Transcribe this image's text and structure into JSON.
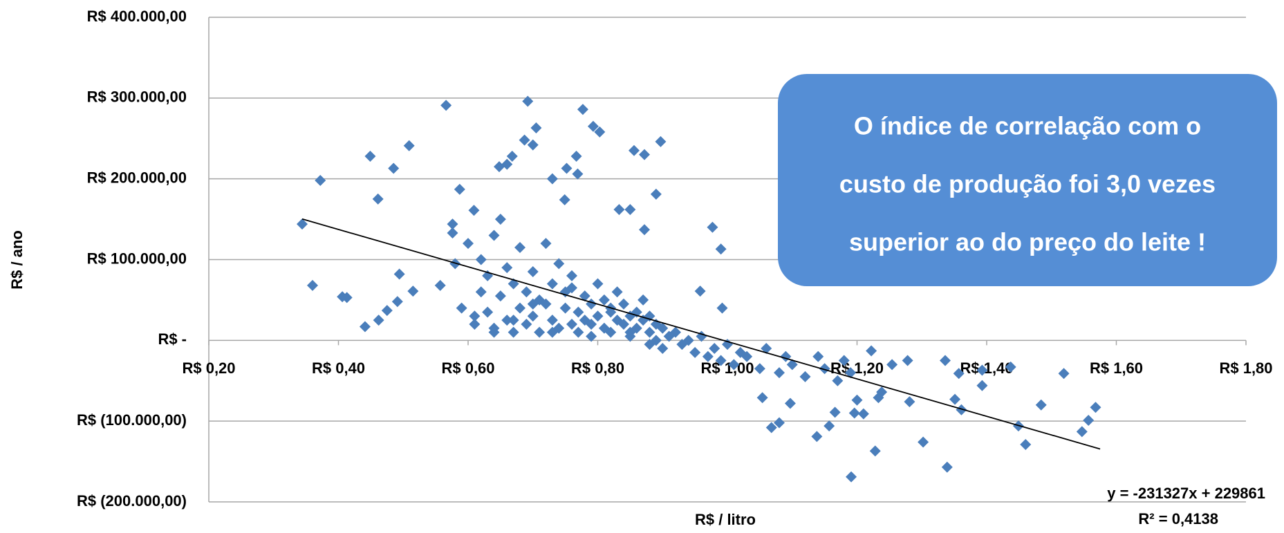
{
  "chart_data": {
    "type": "scatter",
    "x_label": "R$ / litro",
    "y_label": "R$ / ano",
    "xlim": [
      0.2,
      1.8
    ],
    "ylim": [
      -200000,
      400000
    ],
    "xticks": [
      {
        "value": 0.2,
        "label": "R$ 0,20"
      },
      {
        "value": 0.4,
        "label": "R$ 0,40"
      },
      {
        "value": 0.6,
        "label": "R$ 0,60"
      },
      {
        "value": 0.8,
        "label": "R$ 0,80"
      },
      {
        "value": 1.0,
        "label": "R$ 1,00"
      },
      {
        "value": 1.2,
        "label": "R$ 1,20"
      },
      {
        "value": 1.4,
        "label": "R$ 1,40"
      },
      {
        "value": 1.6,
        "label": "R$ 1,60"
      },
      {
        "value": 1.8,
        "label": "R$ 1,80"
      }
    ],
    "yticks": [
      {
        "value": 400000,
        "label": "R$ 400.000,00"
      },
      {
        "value": 300000,
        "label": "R$ 300.000,00"
      },
      {
        "value": 200000,
        "label": "R$ 200.000,00"
      },
      {
        "value": 100000,
        "label": "R$ 100.000,00"
      },
      {
        "value": 0,
        "label": "R$ -"
      },
      {
        "value": -100000,
        "label": "R$ (100.000,00)"
      },
      {
        "value": -200000,
        "label": "R$ (200.000,00)"
      }
    ],
    "grid": true,
    "series": [
      {
        "color": "#4a7ebb",
        "x": [
          0.344,
          0.372,
          0.36,
          0.406,
          0.413,
          0.441,
          0.449,
          0.461,
          0.462,
          0.475,
          0.485,
          0.491,
          0.494,
          0.509,
          0.515,
          0.566,
          0.557,
          0.576,
          0.587,
          0.576,
          0.609,
          0.648,
          0.66,
          0.668,
          0.692,
          0.705,
          0.687,
          0.7,
          0.73,
          0.767,
          0.777,
          0.793,
          0.803,
          0.752,
          0.769,
          0.749,
          0.856,
          0.872,
          0.897,
          0.89,
          0.833,
          0.85,
          0.872,
          0.977,
          0.99,
          0.958,
          0.992,
          1.054,
          1.068,
          1.08,
          1.097,
          1.138,
          1.157,
          1.166,
          1.191,
          1.196,
          1.21,
          1.2,
          1.228,
          1.233,
          1.238,
          1.222,
          1.281,
          1.302,
          1.339,
          1.351,
          1.361,
          1.393,
          1.437,
          1.449,
          1.46,
          1.484,
          1.519,
          1.547,
          1.557,
          1.568,
          1.278,
          1.254,
          1.336,
          1.357,
          1.393,
          0.58,
          0.59,
          0.6,
          0.61,
          0.62,
          0.62,
          0.63,
          0.63,
          0.64,
          0.64,
          0.65,
          0.65,
          0.66,
          0.66,
          0.67,
          0.67,
          0.68,
          0.68,
          0.69,
          0.69,
          0.7,
          0.7,
          0.71,
          0.71,
          0.72,
          0.72,
          0.73,
          0.73,
          0.74,
          0.74,
          0.75,
          0.75,
          0.76,
          0.76,
          0.77,
          0.77,
          0.78,
          0.78,
          0.79,
          0.79,
          0.8,
          0.8,
          0.81,
          0.81,
          0.82,
          0.82,
          0.83,
          0.83,
          0.84,
          0.84,
          0.85,
          0.85,
          0.86,
          0.86,
          0.87,
          0.87,
          0.88,
          0.88,
          0.89,
          0.89,
          0.9,
          0.9,
          0.91,
          0.92,
          0.93,
          0.94,
          0.95,
          0.96,
          0.97,
          0.98,
          0.99,
          1.0,
          1.01,
          1.02,
          1.03,
          1.05,
          1.06,
          1.08,
          1.09,
          1.1,
          1.12,
          1.14,
          1.15,
          1.17,
          1.18,
          1.19,
          0.61,
          0.64,
          0.67,
          0.7,
          0.73,
          0.76,
          0.79,
          0.82,
          0.85,
          0.88
        ],
        "values": [
          144000,
          198000,
          68000,
          54000,
          53000,
          17000,
          228000,
          175000,
          25000,
          37000,
          213000,
          48000,
          82000,
          241000,
          61000,
          291000,
          68000,
          144000,
          187000,
          133000,
          161000,
          215000,
          218000,
          228000,
          296000,
          263000,
          248000,
          242000,
          200000,
          228000,
          286000,
          265000,
          258000,
          213000,
          206000,
          174000,
          235000,
          230000,
          246000,
          181000,
          162000,
          162000,
          137000,
          140000,
          113000,
          61000,
          40000,
          -71000,
          -108000,
          -102000,
          -78000,
          -119000,
          -106000,
          -89000,
          -169000,
          -90000,
          -91000,
          -74000,
          -137000,
          -71000,
          -64000,
          -13000,
          -76000,
          -126000,
          -157000,
          -73000,
          -86000,
          -56000,
          -33000,
          -106000,
          -129000,
          -80000,
          -41000,
          -113000,
          -99000,
          -83000,
          -25000,
          -30000,
          -25000,
          -41000,
          -37000,
          95000,
          40000,
          120000,
          20000,
          60000,
          100000,
          35000,
          80000,
          10000,
          130000,
          55000,
          150000,
          25000,
          90000,
          70000,
          10000,
          115000,
          40000,
          60000,
          20000,
          85000,
          30000,
          50000,
          10000,
          120000,
          45000,
          25000,
          70000,
          15000,
          95000,
          40000,
          60000,
          20000,
          80000,
          35000,
          10000,
          55000,
          25000,
          45000,
          5000,
          30000,
          70000,
          15000,
          50000,
          40000,
          10000,
          25000,
          60000,
          20000,
          45000,
          30000,
          5000,
          35000,
          15000,
          25000,
          50000,
          10000,
          30000,
          20000,
          0,
          15000,
          -10000,
          5000,
          10000,
          -5000,
          0,
          -15000,
          5000,
          -20000,
          -10000,
          -25000,
          -5000,
          -30000,
          -15000,
          -20000,
          -35000,
          -10000,
          -40000,
          -20000,
          -30000,
          -45000,
          -20000,
          -35000,
          -50000,
          -25000,
          -40000,
          30000,
          15000,
          25000,
          45000,
          10000,
          65000,
          20000,
          35000,
          10000,
          -5000
        ]
      }
    ],
    "trendline": {
      "slope": -231327,
      "intercept": 229861,
      "x_range": [
        0.344,
        1.575
      ],
      "color": "#000000"
    },
    "equation_label": "y = -231327x + 229861",
    "r2_label": "R² = 0,4138",
    "callout": [
      "O índice de correlação com o",
      "custo de produção foi 3,0 vezes",
      "superior ao do preço do leite !"
    ]
  }
}
